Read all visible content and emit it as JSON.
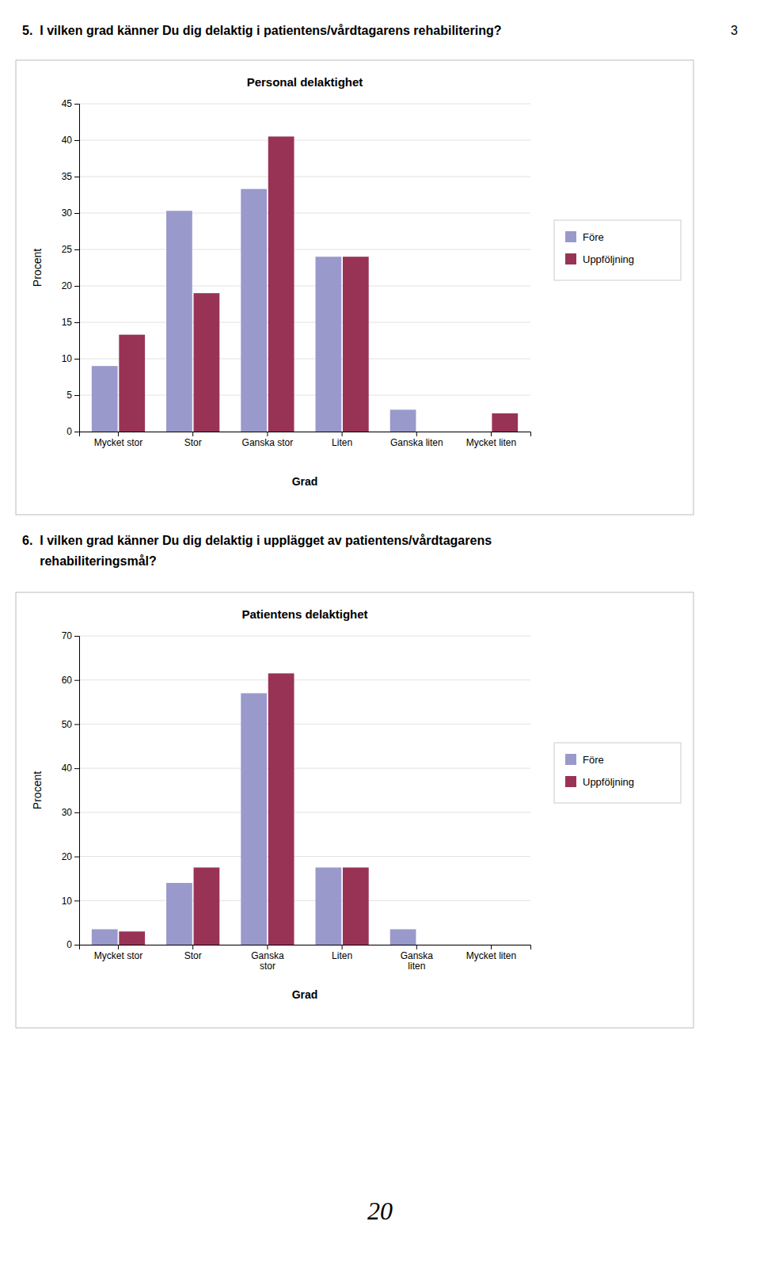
{
  "page": {
    "header": "3",
    "footer": "20",
    "questions": [
      [
        "5.  I vilken grad känner Du dig delaktig i patientens/vårdtagarens rehabilitering?"
      ],
      [
        "6.  I vilken grad känner Du dig delaktig i upplägget av patientens/vårdtagarens",
        "     rehabiliteringsmål?"
      ]
    ]
  },
  "chart_data": [
    {
      "type": "bar",
      "title": "Personal delaktighet",
      "categories": [
        "Mycket stor",
        "Stor",
        "Ganska stor",
        "Liten",
        "Ganska liten",
        "Mycket liten"
      ],
      "series": [
        {
          "name": "Före",
          "color": "#9999CC",
          "values": [
            9,
            30.3,
            33.3,
            24,
            3,
            0
          ]
        },
        {
          "name": "Uppföljning",
          "color": "#993355",
          "values": [
            13.3,
            19,
            40.5,
            24,
            0,
            2.5
          ]
        }
      ],
      "xlabel": "Grad",
      "ylabel": "Procent",
      "ylim": [
        0,
        45
      ],
      "yticks": [
        0,
        5,
        10,
        15,
        20,
        25,
        30,
        35,
        40,
        45
      ],
      "grid": true,
      "legend": "right"
    },
    {
      "type": "bar",
      "title": "Patientens delaktighet",
      "categories": [
        "Mycket stor",
        "Stor",
        "Ganska\nstor",
        "Liten",
        "Ganska\nliten",
        "Mycket liten"
      ],
      "series": [
        {
          "name": "Före",
          "color": "#9999CC",
          "values": [
            3.5,
            14,
            57,
            17.5,
            3.5,
            0
          ]
        },
        {
          "name": "Uppföljning",
          "color": "#993355",
          "values": [
            3,
            17.5,
            61.5,
            17.5,
            0,
            0
          ]
        }
      ],
      "xlabel": "Grad",
      "ylabel": "Procent",
      "ylim": [
        0,
        70
      ],
      "yticks": [
        0,
        10,
        20,
        30,
        40,
        50,
        60,
        70
      ],
      "grid": true,
      "legend": "right"
    }
  ]
}
